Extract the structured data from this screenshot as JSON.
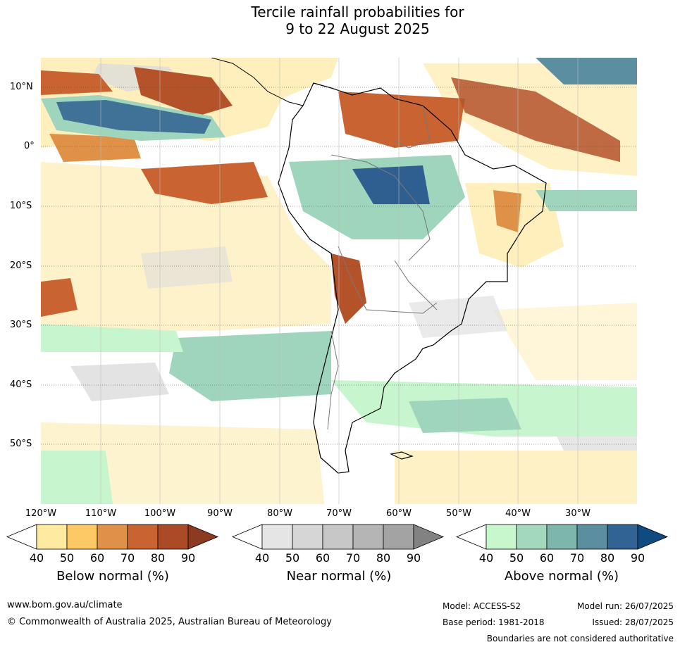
{
  "title": {
    "line1": "Tercile rainfall probabilities for",
    "line2": "9 to 22 August 2025"
  },
  "map": {
    "latitude_labels": [
      "10°N",
      "0°",
      "10°S",
      "20°S",
      "30°S",
      "40°S",
      "50°S"
    ],
    "longitude_labels": [
      "120°W",
      "110°W",
      "100°W",
      "90°W",
      "80°W",
      "70°W",
      "60°W",
      "50°W",
      "40°W",
      "30°W"
    ],
    "ocean_regions": [
      {
        "name": "below-high",
        "color": "#b4522a"
      },
      {
        "name": "below-mid",
        "color": "#e0954a"
      },
      {
        "name": "below-low",
        "color": "#fee89f"
      },
      {
        "name": "near",
        "color": "#dcdcdc"
      },
      {
        "name": "above-low",
        "color": "#c7f5cd"
      },
      {
        "name": "above-mid",
        "color": "#9fd5bd"
      },
      {
        "name": "above-high",
        "color": "#2f5f91"
      }
    ]
  },
  "colorbars": [
    {
      "label": "Below normal (%)",
      "ticks": [
        "40",
        "50",
        "60",
        "70",
        "80",
        "90"
      ],
      "colors": [
        "#ffffff",
        "#feeb9f",
        "#fdc965",
        "#df9147",
        "#c96432",
        "#ab4a27",
        "#8c3a20"
      ]
    },
    {
      "label": "Near normal (%)",
      "ticks": [
        "40",
        "50",
        "60",
        "70",
        "80",
        "90"
      ],
      "colors": [
        "#ffffff",
        "#e5e5e5",
        "#d6d6d6",
        "#c7c7c7",
        "#b5b5b5",
        "#a3a3a3",
        "#828282"
      ]
    },
    {
      "label": "Above normal (%)",
      "ticks": [
        "40",
        "50",
        "60",
        "70",
        "80",
        "90"
      ],
      "colors": [
        "#ffffff",
        "#c8f6cd",
        "#a3d8bd",
        "#7db6aa",
        "#5b8fa0",
        "#316395",
        "#0f4a80"
      ]
    }
  ],
  "footer": {
    "website": "www.bom.gov.au/climate",
    "copyright": "© Commonwealth of Australia 2025, Australian Bureau of Meteorology",
    "model": "Model: ACCESS-S2",
    "base_period": "Base period: 1981-2018",
    "model_run": "Model run: 26/07/2025",
    "issued": "Issued: 28/07/2025",
    "disclaimer": "Boundaries are not considered authoritative"
  }
}
